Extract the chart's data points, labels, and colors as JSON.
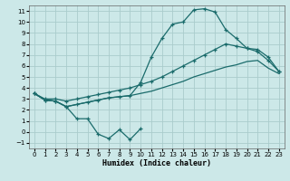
{
  "xlabel": "Humidex (Indice chaleur)",
  "bg_color": "#cce8e8",
  "grid_color": "#aacccc",
  "line_color": "#1a6b6b",
  "xlim": [
    -0.5,
    23.5
  ],
  "ylim": [
    -1.5,
    11.5
  ],
  "xticks": [
    0,
    1,
    2,
    3,
    4,
    5,
    6,
    7,
    8,
    9,
    10,
    11,
    12,
    13,
    14,
    15,
    16,
    17,
    18,
    19,
    20,
    21,
    22,
    23
  ],
  "yticks": [
    -1,
    0,
    1,
    2,
    3,
    4,
    5,
    6,
    7,
    8,
    9,
    10,
    11
  ],
  "series_zigzag_x": [
    0,
    1,
    2,
    3,
    4,
    5,
    6,
    7,
    8,
    9,
    10
  ],
  "series_zigzag_y": [
    3.5,
    2.9,
    2.8,
    2.3,
    1.2,
    1.2,
    -0.2,
    -0.6,
    0.2,
    -0.7,
    0.3
  ],
  "series_peak_x": [
    0,
    1,
    2,
    3,
    4,
    5,
    6,
    7,
    8,
    9,
    10,
    11,
    12,
    13,
    14,
    15,
    16,
    17,
    18,
    19,
    20,
    21,
    22,
    23
  ],
  "series_peak_y": [
    3.5,
    2.9,
    2.8,
    2.3,
    2.5,
    2.7,
    2.9,
    3.1,
    3.2,
    3.3,
    4.5,
    6.8,
    8.5,
    9.8,
    10.0,
    11.1,
    11.2,
    10.9,
    9.3,
    8.5,
    7.6,
    7.5,
    6.8,
    5.5
  ],
  "series_upper_x": [
    0,
    1,
    2,
    3,
    4,
    5,
    6,
    7,
    8,
    9,
    10,
    11,
    12,
    13,
    14,
    15,
    16,
    17,
    18,
    19,
    20,
    21,
    22,
    23
  ],
  "series_upper_y": [
    3.5,
    3.0,
    3.0,
    2.8,
    3.0,
    3.2,
    3.4,
    3.6,
    3.8,
    4.0,
    4.3,
    4.6,
    5.0,
    5.5,
    6.0,
    6.5,
    7.0,
    7.5,
    8.0,
    7.8,
    7.6,
    7.3,
    6.5,
    5.5
  ],
  "series_lower_x": [
    0,
    1,
    2,
    3,
    4,
    5,
    6,
    7,
    8,
    9,
    10,
    11,
    12,
    13,
    14,
    15,
    16,
    17,
    18,
    19,
    20,
    21,
    22,
    23
  ],
  "series_lower_y": [
    3.5,
    2.9,
    2.8,
    2.3,
    2.5,
    2.7,
    2.9,
    3.1,
    3.2,
    3.3,
    3.5,
    3.7,
    4.0,
    4.3,
    4.6,
    5.0,
    5.3,
    5.6,
    5.9,
    6.1,
    6.4,
    6.5,
    5.8,
    5.3
  ]
}
